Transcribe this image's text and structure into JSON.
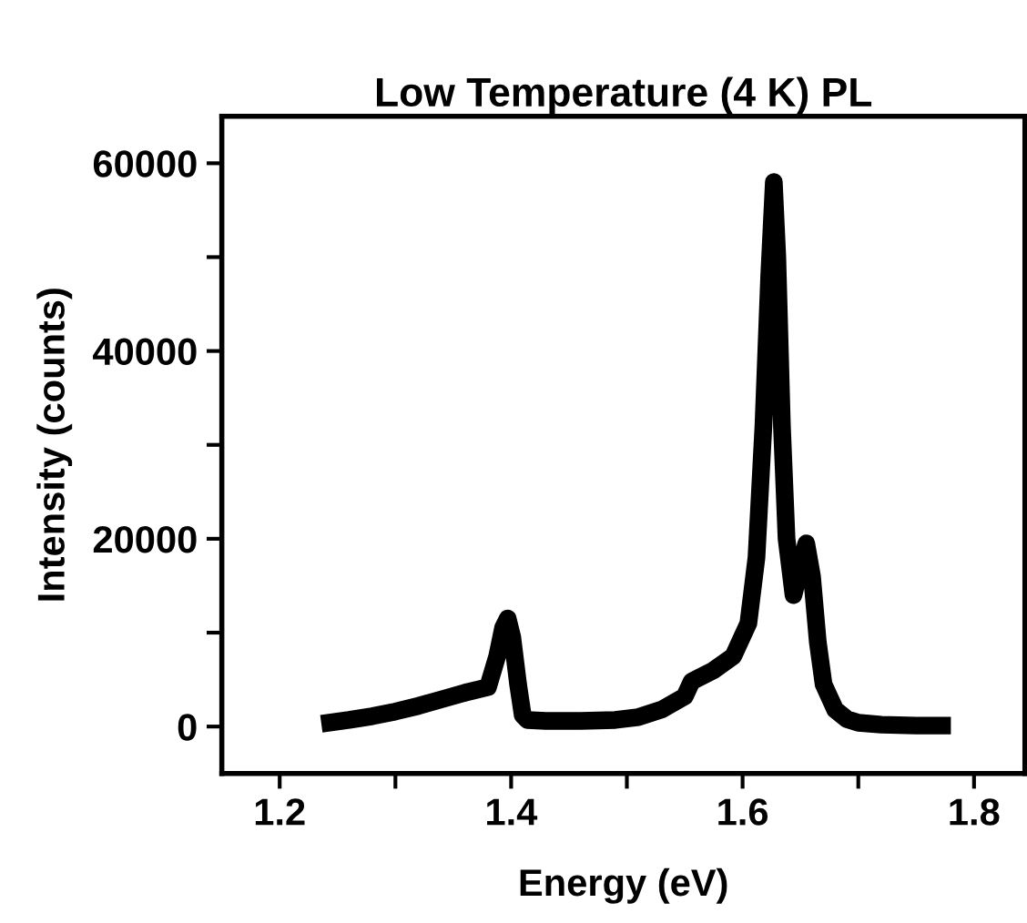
{
  "chart_data": {
    "type": "line",
    "title": "Low Temperature (4 K) PL",
    "xlabel": "Energy (eV)",
    "ylabel": "Intensity (counts)",
    "x": [
      1.236,
      1.26,
      1.28,
      1.3,
      1.32,
      1.34,
      1.36,
      1.38,
      1.388,
      1.393,
      1.397,
      1.401,
      1.406,
      1.41,
      1.414,
      1.43,
      1.46,
      1.49,
      1.51,
      1.53,
      1.55,
      1.556,
      1.575,
      1.592,
      1.605,
      1.612,
      1.618,
      1.623,
      1.627,
      1.63,
      1.634,
      1.638,
      1.644,
      1.65,
      1.655,
      1.66,
      1.665,
      1.67,
      1.68,
      1.69,
      1.7,
      1.72,
      1.75,
      1.78
    ],
    "series": [
      {
        "color": "#000000",
        "values": [
          300,
          700,
          1100,
          1600,
          2200,
          2900,
          3600,
          4200,
          7500,
          10500,
          11500,
          9500,
          4500,
          1200,
          700,
          600,
          600,
          700,
          1000,
          1800,
          3200,
          4800,
          6000,
          7500,
          11000,
          18000,
          32000,
          48000,
          58000,
          50000,
          32000,
          20000,
          14000,
          17000,
          19500,
          16000,
          9000,
          4500,
          1800,
          800,
          400,
          200,
          100,
          100
        ]
      }
    ],
    "xlim": [
      1.15,
      1.844
    ],
    "ylim": [
      -5000,
      65000
    ],
    "xticks": [
      1.2,
      {
        "value": 1.3,
        "label": null
      },
      1.4,
      {
        "value": 1.5,
        "label": null
      },
      1.6,
      {
        "value": 1.7,
        "label": null
      },
      1.8
    ],
    "yticks": [
      0,
      {
        "value": 10000,
        "label": null
      },
      20000,
      {
        "value": 30000,
        "label": null
      },
      40000,
      {
        "value": 50000,
        "label": null
      },
      60000
    ],
    "grid": false,
    "legend": false,
    "marker": "none",
    "line_style": "solid"
  }
}
